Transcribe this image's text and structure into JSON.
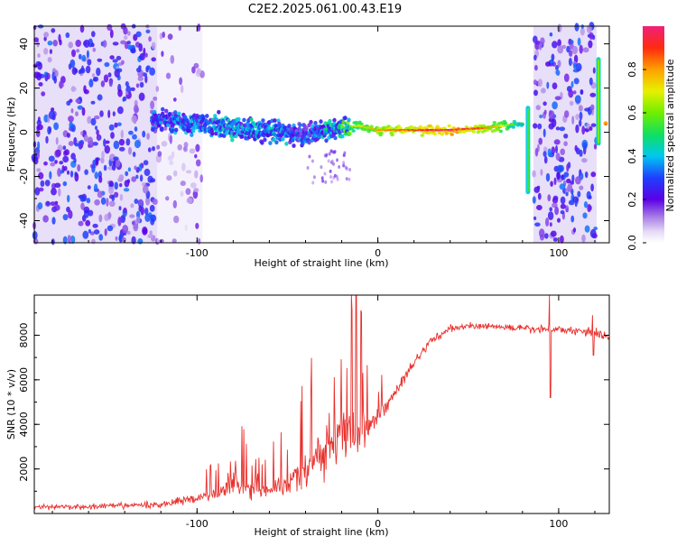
{
  "title": "C2E2.2025.061.00.43.E19",
  "colorbar": {
    "label": "Normalized spectral amplitude",
    "ticks": [
      "0.0",
      "0.2",
      "0.4",
      "0.6",
      "0.8"
    ],
    "tick_values": [
      0.0,
      0.2,
      0.4,
      0.6,
      0.8
    ],
    "range": [
      0,
      1
    ]
  },
  "chart_data": [
    {
      "type": "heatmap",
      "xlabel": "Height of straight line (km)",
      "ylabel": "Frequency (Hz)",
      "xlim": [
        -190,
        128
      ],
      "ylim": [
        -50,
        48
      ],
      "x_ticks": [
        -100,
        0,
        100
      ],
      "y_ticks": [
        -40,
        -20,
        0,
        20,
        40
      ],
      "noise_regions": [
        {
          "x": [
            -190,
            -122
          ],
          "level": 0.15
        },
        {
          "x": [
            -122,
            -97
          ],
          "level": 0.08
        },
        {
          "x": [
            86,
            121
          ],
          "level": 0.15
        }
      ],
      "ridge": {
        "x": [
          -125,
          -100,
          -80,
          -60,
          -40,
          -20,
          -10,
          0,
          20,
          40,
          60,
          80
        ],
        "frequency": [
          6,
          4,
          2,
          0,
          -1,
          2,
          3,
          1,
          1,
          1,
          2,
          4
        ],
        "amplitude": [
          0.35,
          0.4,
          0.45,
          0.45,
          0.35,
          0.55,
          0.7,
          0.8,
          0.9,
          1.0,
          0.85,
          0.5
        ]
      },
      "spikes": [
        {
          "x": 83,
          "f_range": [
            -28,
            12
          ],
          "amplitude": 0.4
        },
        {
          "x": 122,
          "f_range": [
            -6,
            34
          ],
          "amplitude": 0.45
        },
        {
          "x": 126,
          "f_range": [
            3,
            5
          ],
          "amplitude": 0.8
        }
      ]
    },
    {
      "type": "line",
      "xlabel": "Height of straight line (km)",
      "ylabel": "SNR (10 * v/v)",
      "xlim": [
        -190,
        128
      ],
      "ylim": [
        0,
        9800
      ],
      "x_ticks": [
        -100,
        0,
        100
      ],
      "y_ticks": [
        2000,
        4000,
        6000,
        8000
      ],
      "color": "#e8302c",
      "series": [
        {
          "x": [
            -190,
            -160,
            -140,
            -120,
            -100,
            -90,
            -80,
            -70,
            -60,
            -50,
            -40,
            -30,
            -25,
            -20,
            -15,
            -10,
            -5,
            0,
            5,
            10,
            15,
            20,
            30,
            40,
            50,
            60,
            70,
            80,
            90,
            95,
            100,
            110,
            120,
            128
          ],
          "values": [
            300,
            300,
            350,
            400,
            700,
            900,
            1400,
            1100,
            1100,
            1300,
            1900,
            2800,
            3300,
            3600,
            3300,
            3700,
            3900,
            4300,
            4900,
            5500,
            6100,
            6800,
            7800,
            8300,
            8400,
            8400,
            8350,
            8300,
            8250,
            8300,
            8250,
            8200,
            8150,
            7900
          ],
          "noise": [
            180,
            200,
            220,
            250,
            320,
            450,
            900,
            650,
            600,
            800,
            1300,
            2000,
            2300,
            2400,
            2200,
            1800,
            900,
            600,
            500,
            400,
            380,
            350,
            300,
            280,
            250,
            250,
            250,
            250,
            300,
            300,
            280,
            300,
            350,
            300
          ]
        }
      ],
      "annotations": [
        {
          "x": -12,
          "peak": 9800
        },
        {
          "x": 95,
          "peak": 9900,
          "dip": 5200
        },
        {
          "x": 119,
          "peak": 8900,
          "dip": 7100
        }
      ]
    }
  ]
}
